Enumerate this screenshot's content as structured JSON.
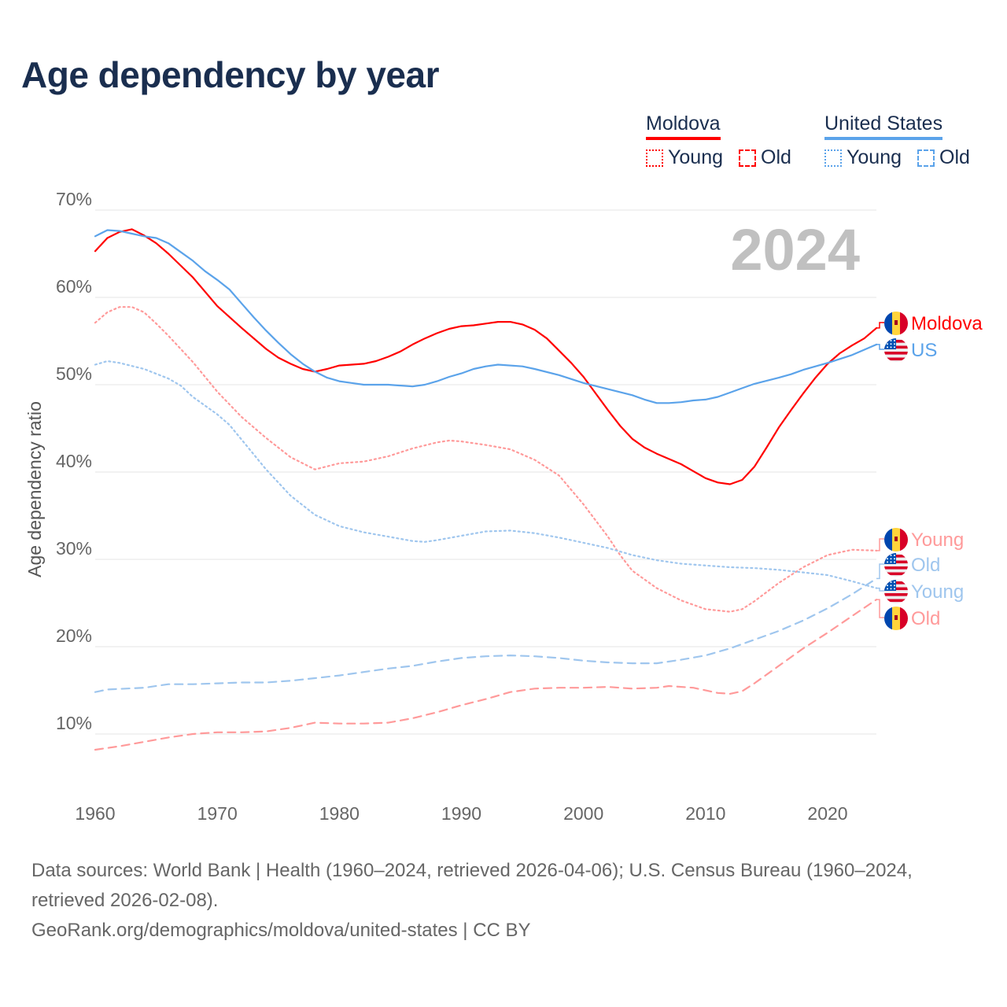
{
  "title": "Age dependency by year",
  "year_watermark": "2024",
  "legend": {
    "moldova": {
      "label": "Moldova",
      "young": "Young",
      "old": "Old"
    },
    "us": {
      "label": "United States",
      "young": "Young",
      "old": "Old"
    }
  },
  "colors": {
    "moldova": "#ff0000",
    "moldova_light": "#ff9a9a",
    "us": "#5ba3ea",
    "us_light": "#9fc6ee"
  },
  "footer": {
    "sources": "Data sources: World Bank | Health (1960–2024, retrieved 2026-04-06); U.S. Census Bureau (1960–2024, retrieved 2026-02-08).",
    "link": "GeoRank.org/demographics/moldova/united-states | CC BY"
  },
  "chart_data": {
    "type": "line",
    "title": "Age dependency by year",
    "xlabel": "",
    "ylabel": "Age dependency ratio",
    "xlim": [
      1960,
      2024
    ],
    "ylim": [
      5,
      70
    ],
    "xticks": [
      1960,
      1970,
      1980,
      1990,
      2000,
      2010,
      2020
    ],
    "yticks": [
      10,
      20,
      30,
      40,
      50,
      60,
      70
    ],
    "ytick_labels": [
      "10%",
      "20%",
      "30%",
      "40%",
      "50%",
      "60%",
      "70%"
    ],
    "grid": true,
    "legend_position": "top-right",
    "series": [
      {
        "name": "Moldova",
        "end_label": "Moldova",
        "country": "moldova",
        "style": "solid",
        "color": "#ff0000",
        "x": [
          1960,
          1961,
          1962,
          1963,
          1964,
          1965,
          1966,
          1968,
          1970,
          1972,
          1974,
          1975,
          1976,
          1977,
          1978,
          1979,
          1980,
          1982,
          1983,
          1984,
          1985,
          1986,
          1987,
          1988,
          1989,
          1990,
          1991,
          1992,
          1993,
          1994,
          1995,
          1996,
          1997,
          1998,
          1999,
          2000,
          2001,
          2002,
          2003,
          2004,
          2005,
          2006,
          2007,
          2008,
          2009,
          2010,
          2011,
          2012,
          2013,
          2014,
          2015,
          2016,
          2017,
          2018,
          2019,
          2020,
          2021,
          2022,
          2023,
          2024
        ],
        "y": [
          65.3,
          66.8,
          67.5,
          67.8,
          67.1,
          66.2,
          65.0,
          62.3,
          59.0,
          56.5,
          54.1,
          53.1,
          52.4,
          51.8,
          51.5,
          51.8,
          52.2,
          52.4,
          52.7,
          53.2,
          53.8,
          54.6,
          55.3,
          55.9,
          56.4,
          56.7,
          56.8,
          57.0,
          57.2,
          57.2,
          56.9,
          56.3,
          55.3,
          53.9,
          52.5,
          50.9,
          49.0,
          47.1,
          45.3,
          43.8,
          42.8,
          42.1,
          41.5,
          40.9,
          40.1,
          39.3,
          38.8,
          38.6,
          39.1,
          40.6,
          42.8,
          45.1,
          47.1,
          49.0,
          50.8,
          52.4,
          53.6,
          54.5,
          55.3,
          56.5
        ]
      },
      {
        "name": "United States",
        "end_label": "US",
        "country": "us",
        "style": "solid",
        "color": "#5ba3ea",
        "x": [
          1960,
          1961,
          1962,
          1963,
          1964,
          1965,
          1966,
          1967,
          1968,
          1969,
          1970,
          1971,
          1972,
          1973,
          1974,
          1975,
          1976,
          1977,
          1978,
          1979,
          1980,
          1981,
          1982,
          1984,
          1986,
          1987,
          1988,
          1989,
          1990,
          1991,
          1992,
          1993,
          1995,
          1996,
          1998,
          2000,
          2002,
          2004,
          2005,
          2006,
          2007,
          2008,
          2009,
          2010,
          2011,
          2012,
          2013,
          2014,
          2016,
          2017,
          2018,
          2020,
          2022,
          2024
        ],
        "y": [
          67.0,
          67.7,
          67.6,
          67.3,
          67.0,
          66.8,
          66.2,
          65.2,
          64.2,
          63.0,
          62.0,
          60.9,
          59.3,
          57.7,
          56.2,
          54.8,
          53.5,
          52.4,
          51.5,
          50.8,
          50.4,
          50.2,
          50.0,
          50.0,
          49.8,
          50.0,
          50.4,
          50.9,
          51.3,
          51.8,
          52.1,
          52.3,
          52.1,
          51.8,
          51.1,
          50.2,
          49.5,
          48.8,
          48.3,
          47.9,
          47.9,
          48.0,
          48.2,
          48.3,
          48.6,
          49.1,
          49.6,
          50.1,
          50.8,
          51.2,
          51.7,
          52.5,
          53.4,
          54.6
        ]
      },
      {
        "name": "Moldova Young",
        "end_label": "Young",
        "country": "moldova",
        "style": "dotted",
        "color": "#ff9a9a",
        "x": [
          1960,
          1961,
          1962,
          1963,
          1964,
          1965,
          1966,
          1968,
          1970,
          1972,
          1974,
          1976,
          1978,
          1980,
          1982,
          1984,
          1986,
          1988,
          1989,
          1990,
          1992,
          1994,
          1996,
          1998,
          2000,
          2002,
          2003,
          2004,
          2006,
          2008,
          2010,
          2012,
          2013,
          2014,
          2016,
          2018,
          2020,
          2022,
          2024
        ],
        "y": [
          57.1,
          58.3,
          58.9,
          58.9,
          58.3,
          57.0,
          55.6,
          52.6,
          49.2,
          46.3,
          43.9,
          41.7,
          40.3,
          41.0,
          41.2,
          41.8,
          42.7,
          43.4,
          43.6,
          43.5,
          43.1,
          42.6,
          41.4,
          39.6,
          36.3,
          32.6,
          30.5,
          28.7,
          26.7,
          25.3,
          24.3,
          24.0,
          24.3,
          25.2,
          27.3,
          29.1,
          30.5,
          31.1,
          31.0
        ]
      },
      {
        "name": "United States Old",
        "end_label": "Old",
        "country": "us",
        "style": "dashed",
        "color": "#9fc6ee",
        "x": [
          1960,
          1961,
          1964,
          1966,
          1968,
          1970,
          1972,
          1974,
          1976,
          1978,
          1980,
          1982,
          1984,
          1986,
          1988,
          1990,
          1992,
          1994,
          1996,
          1998,
          2000,
          2002,
          2004,
          2006,
          2008,
          2010,
          2012,
          2014,
          2016,
          2018,
          2020,
          2022,
          2024
        ],
        "y": [
          14.8,
          15.1,
          15.3,
          15.7,
          15.7,
          15.8,
          15.9,
          15.9,
          16.1,
          16.4,
          16.7,
          17.1,
          17.5,
          17.8,
          18.3,
          18.7,
          18.9,
          19.0,
          18.9,
          18.7,
          18.4,
          18.2,
          18.1,
          18.1,
          18.5,
          19.0,
          19.8,
          20.8,
          21.8,
          23.0,
          24.4,
          26.0,
          27.8
        ]
      },
      {
        "name": "United States Young",
        "end_label": "Young",
        "country": "us",
        "style": "dotted",
        "color": "#9fc6ee",
        "x": [
          1960,
          1961,
          1962,
          1964,
          1966,
          1967,
          1968,
          1970,
          1971,
          1972,
          1974,
          1976,
          1978,
          1980,
          1982,
          1984,
          1986,
          1987,
          1988,
          1990,
          1992,
          1994,
          1996,
          1998,
          2000,
          2002,
          2004,
          2006,
          2008,
          2010,
          2012,
          2014,
          2016,
          2018,
          2020,
          2022,
          2024
        ],
        "y": [
          52.3,
          52.7,
          52.5,
          51.8,
          50.7,
          49.9,
          48.6,
          46.6,
          45.4,
          43.7,
          40.3,
          37.3,
          35.1,
          33.8,
          33.1,
          32.6,
          32.1,
          32.0,
          32.2,
          32.7,
          33.2,
          33.3,
          33.0,
          32.5,
          31.9,
          31.3,
          30.5,
          29.9,
          29.5,
          29.3,
          29.1,
          29.0,
          28.8,
          28.5,
          28.2,
          27.5,
          26.7
        ]
      },
      {
        "name": "Moldova Old",
        "end_label": "Old",
        "country": "moldova",
        "style": "dashed",
        "color": "#ff9a9a",
        "x": [
          1960,
          1962,
          1964,
          1966,
          1968,
          1970,
          1972,
          1974,
          1976,
          1978,
          1980,
          1982,
          1984,
          1986,
          1988,
          1990,
          1992,
          1994,
          1996,
          1998,
          2000,
          2002,
          2004,
          2006,
          2007,
          2009,
          2011,
          2012,
          2013,
          2014,
          2016,
          2018,
          2020,
          2022,
          2024
        ],
        "y": [
          8.2,
          8.6,
          9.1,
          9.6,
          10.0,
          10.2,
          10.2,
          10.3,
          10.7,
          11.3,
          11.2,
          11.2,
          11.3,
          11.8,
          12.5,
          13.3,
          14.0,
          14.8,
          15.2,
          15.3,
          15.3,
          15.4,
          15.2,
          15.3,
          15.5,
          15.3,
          14.7,
          14.6,
          14.9,
          15.8,
          17.8,
          19.8,
          21.6,
          23.5,
          25.4
        ]
      }
    ]
  }
}
